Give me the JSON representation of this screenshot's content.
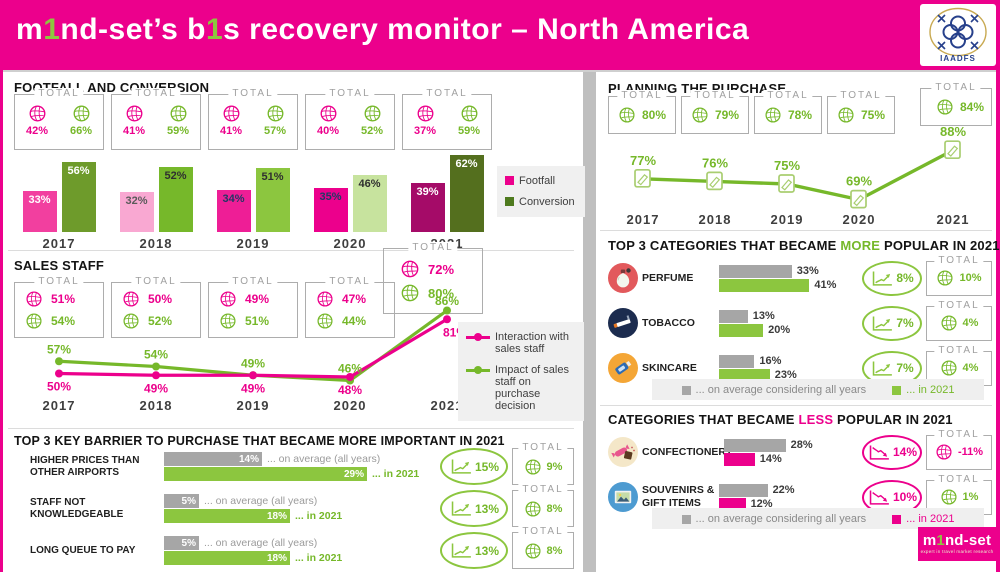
{
  "header": {
    "title_parts": [
      "m",
      "1",
      "nd-set’s b",
      "1",
      "s recovery monitor – North America"
    ],
    "logo_text": "IAADFS"
  },
  "labels": {
    "total": "TOTAL"
  },
  "chart_data": [
    {
      "id": "footfall_conversion",
      "type": "bar",
      "title": "FOOTFALL AND CONVERSION",
      "categories": [
        "2017",
        "2018",
        "2019",
        "2020",
        "2021"
      ],
      "series": [
        {
          "name": "Footfall",
          "values": [
            33,
            32,
            34,
            35,
            39
          ],
          "bar_colors": [
            "#F23F9F",
            "#F9A8D2",
            "#EE1E96",
            "#EC008C",
            "#A50B68"
          ],
          "label_colors": [
            "#FFFFFF",
            "#5A5A5A",
            "#203864",
            "#203864",
            "#FFFFFF"
          ]
        },
        {
          "name": "Conversion",
          "values": [
            56,
            52,
            51,
            46,
            62
          ],
          "bar_colors": [
            "#6E9B2B",
            "#76B82A",
            "#8CC63F",
            "#C7E39E",
            "#546F1E"
          ],
          "label_colors": [
            "#FFFFFF",
            "#2F2F2F",
            "#2F2F2F",
            "#2F2F2F",
            "#FFFFFF"
          ]
        }
      ],
      "totals": {
        "footfall": [
          42,
          41,
          41,
          40,
          37
        ],
        "conversion": [
          66,
          59,
          57,
          52,
          59
        ]
      },
      "legend": [
        "Footfall",
        "Conversion"
      ],
      "legend_colors": [
        "#EC008C",
        "#4E7A1E"
      ]
    },
    {
      "id": "sales_staff",
      "type": "line",
      "title": "SALES STAFF",
      "categories": [
        "2017",
        "2018",
        "2019",
        "2020",
        "2021"
      ],
      "series": [
        {
          "name": "Interaction with sales staff",
          "color": "#EC008C",
          "values": [
            50,
            49,
            49,
            48,
            81
          ]
        },
        {
          "name": "Impact of sales staff on purchase decision",
          "color": "#76B82A",
          "values": [
            57,
            54,
            49,
            46,
            86
          ]
        }
      ],
      "totals": {
        "interaction": [
          51,
          50,
          49,
          47,
          72
        ],
        "impact": [
          54,
          52,
          51,
          44,
          80
        ]
      }
    },
    {
      "id": "key_barriers",
      "type": "bar",
      "title": "TOP 3 KEY BARRIER TO PURCHASE THAT BECAME MORE IMPORTANT IN 2021",
      "avg_note": "... on average (all years)",
      "y2021_note": "... in 2021",
      "rows": [
        {
          "label": "HIGHER PRICES THAN OTHER AIRPORTS",
          "avg": 14,
          "in_2021": 29,
          "trend": "15%",
          "total": "9%"
        },
        {
          "label": "STAFF NOT KNOWLEDGEABLE",
          "avg": 5,
          "in_2021": 18,
          "trend": "13%",
          "total": "8%"
        },
        {
          "label": "LONG QUEUE TO PAY",
          "avg": 5,
          "in_2021": 18,
          "trend": "13%",
          "total": "8%"
        }
      ]
    },
    {
      "id": "planning_purchase",
      "type": "line",
      "title": "PLANNING THE PURCHASE",
      "categories": [
        "2017",
        "2018",
        "2019",
        "2020",
        "2021"
      ],
      "values": [
        77,
        76,
        75,
        69,
        88
      ],
      "totals": [
        80,
        79,
        78,
        75,
        84
      ],
      "color": "#76B82A"
    },
    {
      "id": "categories_more",
      "type": "bar",
      "title_parts": [
        "TOP 3 CATEGORIES THAT BECAME ",
        "MORE",
        " POPULAR IN 2021"
      ],
      "accent": "#76B82A",
      "legend": {
        "avg": "... on average considering all years",
        "y2021": "... in 2021"
      },
      "rows": [
        {
          "label": "PERFUME",
          "icon": "perfume",
          "avg": 33,
          "in_2021": 41,
          "trend": "8%",
          "total": "10%"
        },
        {
          "label": "TOBACCO",
          "icon": "tobacco",
          "avg": 13,
          "in_2021": 20,
          "trend": "7%",
          "total": "4%"
        },
        {
          "label": "SKINCARE",
          "icon": "skincare",
          "avg": 16,
          "in_2021": 23,
          "trend": "7%",
          "total": "4%"
        }
      ]
    },
    {
      "id": "categories_less",
      "type": "bar",
      "title_parts": [
        "CATEGORIES THAT BECAME ",
        "LESS",
        " POPULAR IN 2021"
      ],
      "accent": "#EC008C",
      "legend": {
        "avg": "... on average considering all years",
        "y2021": "... in 2021"
      },
      "rows": [
        {
          "label": "CONFECTIONERY",
          "icon": "confectionery",
          "avg": 28,
          "in_2021": 14,
          "trend": "14%",
          "total": "-11%",
          "total_color": "#EC008C"
        },
        {
          "label": "SOUVENIRS & GIFT ITEMS",
          "icon": "souvenirs",
          "avg": 22,
          "in_2021": 12,
          "trend": "10%",
          "total": "1%",
          "total_color": "#76B82A"
        }
      ]
    }
  ],
  "footer_logo": {
    "text_parts": [
      "m",
      "1",
      "nd-set"
    ],
    "tagline": "expert in travel market research"
  }
}
